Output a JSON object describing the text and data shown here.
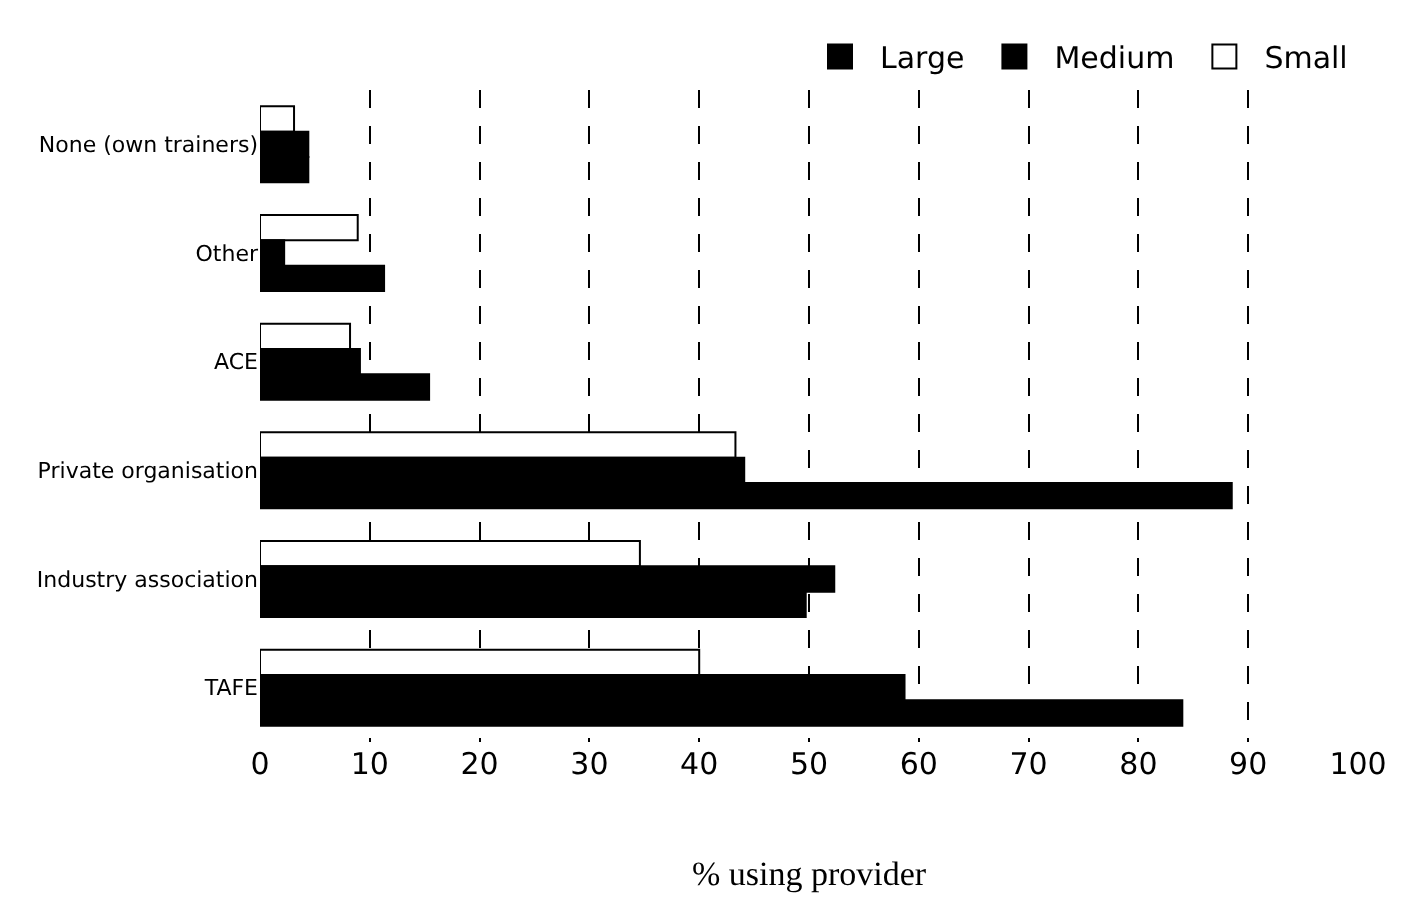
{
  "chart_data": {
    "type": "bar",
    "orientation": "horizontal",
    "xlabel": "% using provider",
    "categories": [
      "None (own trainers)",
      "Other",
      "ACE",
      "Private organisation",
      "Industry association",
      "TAFE"
    ],
    "series": [
      {
        "name": "Small",
        "color": "#ffffff",
        "values": [
          3.1,
          8.9,
          8.2,
          43.3,
          34.6,
          40.0
        ]
      },
      {
        "name": "Medium",
        "color": "#000000",
        "values": [
          4.4,
          2.2,
          9.1,
          44.1,
          52.3,
          58.7
        ]
      },
      {
        "name": "Large",
        "color": "#000000",
        "values": [
          4.4,
          11.3,
          15.4,
          88.5,
          49.7,
          84.0
        ]
      }
    ],
    "xlim": [
      0,
      100
    ],
    "xticks": [
      0,
      10,
      20,
      30,
      40,
      50,
      60,
      70,
      80,
      90,
      100
    ],
    "grid": "x",
    "legend": "top right"
  }
}
